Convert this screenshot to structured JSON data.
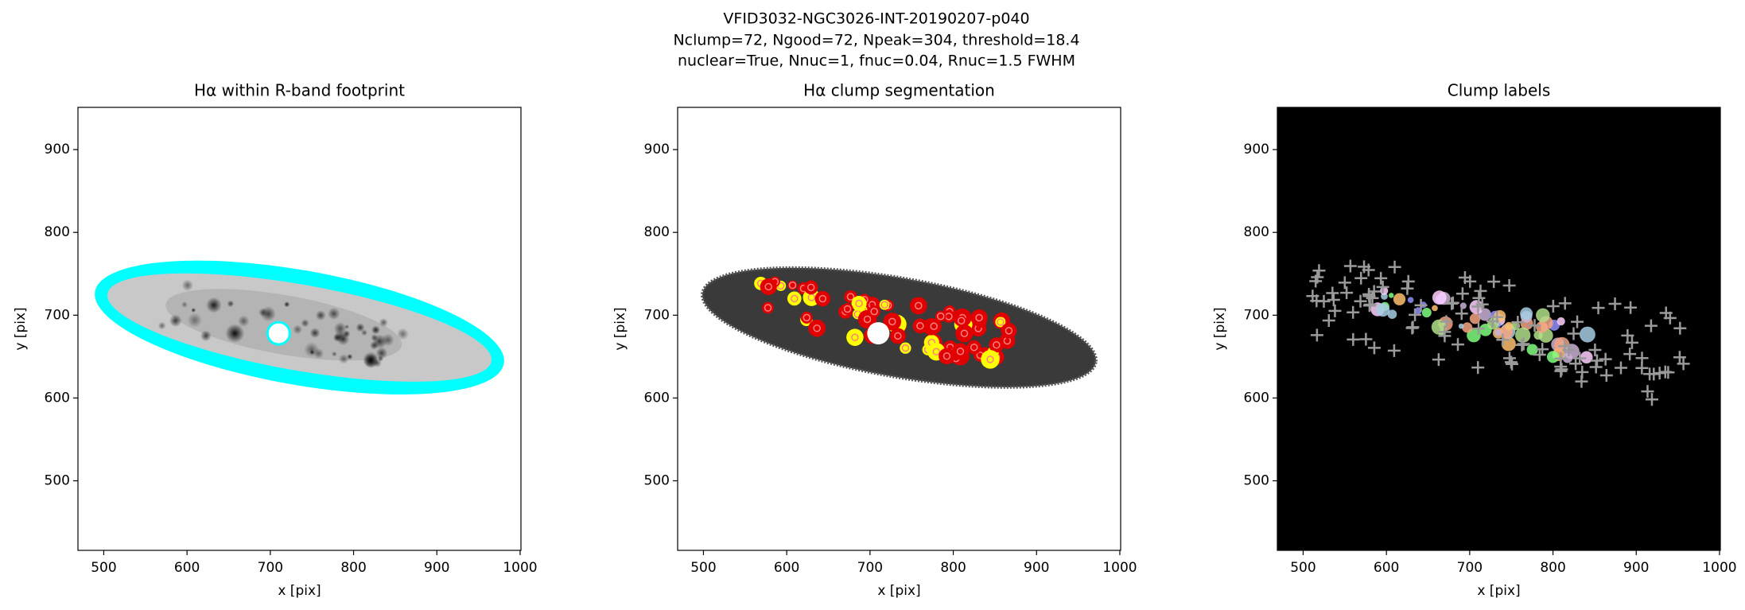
{
  "suptitle": [
    "VFID3032-NGC3026-INT-20190207-p040",
    "Nclump=72, Ngood=72, Npeak=304, threshold=18.4",
    "nuclear=True, Nnuc=1, fnuc=0.04, Rnuc=1.5 FWHM"
  ],
  "chart_data": [
    {
      "type": "image",
      "style": "footprint",
      "title": "Hα within R-band footprint",
      "xlabel": "x [pix]",
      "ylabel": "y [pix]",
      "xlim": [
        469,
        1001
      ],
      "ylim": [
        416,
        951
      ],
      "xticks": [
        500,
        600,
        700,
        800,
        900,
        1000
      ],
      "yticks": [
        500,
        600,
        700,
        800,
        900
      ]
    },
    {
      "type": "image",
      "style": "segmentation",
      "title": "Hα clump segmentation",
      "xlabel": "x [pix]",
      "ylabel": "y [pix]",
      "xlim": [
        469,
        1001
      ],
      "ylim": [
        416,
        951
      ],
      "xticks": [
        500,
        600,
        700,
        800,
        900,
        1000
      ],
      "yticks": [
        500,
        600,
        700,
        800,
        900
      ]
    },
    {
      "type": "image",
      "style": "labels",
      "title": "Clump labels",
      "xlabel": "x [pix]",
      "ylabel": "y [pix]",
      "xlim": [
        469,
        1001
      ],
      "ylim": [
        416,
        951
      ],
      "xticks": [
        500,
        600,
        700,
        800,
        900,
        1000
      ],
      "yticks": [
        500,
        600,
        700,
        800,
        900
      ]
    }
  ]
}
